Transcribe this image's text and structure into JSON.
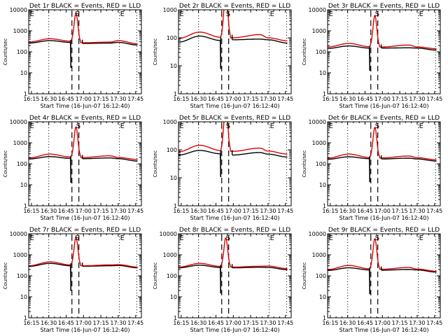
{
  "figure": {
    "type": "multi-panel line plot",
    "colors": {
      "events": "#000000",
      "lld": "#e00000",
      "background": "#ffffff"
    }
  },
  "chart_data": [
    {
      "type": "line",
      "title": "Det 1r BLACK = Events, RED = LLD",
      "xlabel": "Start Time (16-Jun-07 16:12:40)",
      "ylabel": "Counts/sec",
      "xlim": [
        "16:13",
        "17:50"
      ],
      "ylim": [
        1,
        10000
      ],
      "yscale": "log",
      "xticks": [
        "16:15",
        "16:30",
        "16:45",
        "17:00",
        "17:15",
        "17:30",
        "17:45"
      ],
      "yticks": [
        "1",
        "10",
        "100",
        "1000",
        "10000"
      ],
      "markers": {
        "dotted": [
          "16:30",
          "17:31",
          "17:46"
        ],
        "dashed": [
          "16:50",
          "16:56"
        ],
        "labels": [
          {
            "t": "16:13",
            "text": "E"
          },
          {
            "t": "16:52",
            "text": "S"
          },
          {
            "t": "17:31",
            "text": "E"
          }
        ]
      },
      "series": [
        {
          "name": "Events",
          "color": "#000000",
          "base": [
            260,
            340,
            280,
            250,
            260,
            280,
            210
          ],
          "dip": 18
        },
        {
          "name": "LLD",
          "color": "#e00000",
          "base": [
            290,
            420,
            320,
            270,
            290,
            340,
            240
          ],
          "peak": 7000
        }
      ]
    },
    {
      "type": "line",
      "title": "Det 2r BLACK = Events, RED = LLD",
      "xlabel": "Start Time (16-Jun-07 16:12:40)",
      "ylabel": "Counts/sec",
      "xlim": [
        "16:13",
        "17:50"
      ],
      "ylim": [
        1,
        1000
      ],
      "yscale": "log",
      "xticks": [
        "16:15",
        "16:30",
        "16:45",
        "17:00",
        "17:15",
        "17:30",
        "17:45"
      ],
      "yticks": [
        "1",
        "10",
        "100",
        "1000"
      ],
      "markers": {
        "dotted": [
          "16:30",
          "17:31",
          "17:46"
        ],
        "dashed": [
          "16:50",
          "16:56"
        ],
        "labels": [
          {
            "t": "16:13",
            "text": "E"
          },
          {
            "t": "16:53",
            "text": "S"
          },
          {
            "t": "17:31",
            "text": "E"
          }
        ]
      },
      "series": [
        {
          "name": "Events",
          "color": "#000000",
          "base": [
            70,
            115,
            80,
            85,
            90,
            85,
            65
          ],
          "dip": 8
        },
        {
          "name": "LLD",
          "color": "#e00000",
          "base": [
            95,
            160,
            105,
            100,
            130,
            100,
            78
          ],
          "peak": 5000
        }
      ]
    },
    {
      "type": "line",
      "title": "Det 3r BLACK = Events, RED = LLD",
      "xlabel": "Start Time (16-Jun-07 16:12:40)",
      "ylabel": "Counts/sec",
      "xlim": [
        "16:13",
        "17:50"
      ],
      "ylim": [
        1,
        10000
      ],
      "yscale": "log",
      "xticks": [
        "16:15",
        "16:30",
        "16:45",
        "17:00",
        "17:15",
        "17:30",
        "17:45"
      ],
      "yticks": [
        "1",
        "10",
        "100",
        "1000",
        "10000"
      ],
      "markers": {
        "dotted": [
          "16:30",
          "17:31",
          "17:46"
        ],
        "dashed": [
          "16:50",
          "16:56"
        ],
        "labels": [
          {
            "t": "16:13",
            "text": "E"
          },
          {
            "t": "16:53",
            "text": "S"
          },
          {
            "t": "17:31",
            "text": "E"
          }
        ]
      },
      "series": [
        {
          "name": "Events",
          "color": "#000000",
          "base": [
            145,
            190,
            150,
            150,
            155,
            150,
            120
          ],
          "dip": 13
        },
        {
          "name": "LLD",
          "color": "#e00000",
          "base": [
            170,
            250,
            175,
            170,
            210,
            170,
            140
          ],
          "peak": 5500
        }
      ]
    },
    {
      "type": "line",
      "title": "Det 4r BLACK = Events, RED = LLD",
      "xlabel": "Start Time (16-Jun-07 16:12:40)",
      "ylabel": "Counts/sec",
      "xlim": [
        "16:13",
        "17:50"
      ],
      "ylim": [
        1,
        10000
      ],
      "yscale": "log",
      "xticks": [
        "16:15",
        "16:30",
        "16:45",
        "17:00",
        "17:15",
        "17:30",
        "17:45"
      ],
      "yticks": [
        "1",
        "10",
        "100",
        "1000",
        "10000"
      ],
      "markers": {
        "dotted": [
          "16:30",
          "17:31",
          "17:46"
        ],
        "dashed": [
          "16:50",
          "16:56"
        ],
        "labels": [
          {
            "t": "16:13",
            "text": "E"
          },
          {
            "t": "16:53",
            "text": "S"
          },
          {
            "t": "17:31",
            "text": "E"
          }
        ]
      },
      "series": [
        {
          "name": "Events",
          "color": "#000000",
          "base": [
            170,
            220,
            180,
            175,
            190,
            175,
            135
          ],
          "dip": 13
        },
        {
          "name": "LLD",
          "color": "#e00000",
          "base": [
            190,
            290,
            210,
            200,
            240,
            200,
            160
          ],
          "peak": 5800
        }
      ]
    },
    {
      "type": "line",
      "title": "Det 5r BLACK = Events, RED = LLD",
      "xlabel": "Start Time (16-Jun-07 16:12:40)",
      "ylabel": "Counts/sec",
      "xlim": [
        "16:13",
        "17:50"
      ],
      "ylim": [
        1,
        1000
      ],
      "yscale": "log",
      "xticks": [
        "16:15",
        "16:30",
        "16:45",
        "17:00",
        "17:15",
        "17:30",
        "17:45"
      ],
      "yticks": [
        "1",
        "10",
        "100",
        "1000"
      ],
      "markers": {
        "dotted": [
          "16:30",
          "17:31",
          "17:46"
        ],
        "dashed": [
          "16:50",
          "16:56"
        ],
        "labels": [
          {
            "t": "16:13",
            "text": "E"
          },
          {
            "t": "16:53",
            "text": "S"
          },
          {
            "t": "17:31",
            "text": "E"
          }
        ]
      },
      "series": [
        {
          "name": "Events",
          "color": "#000000",
          "base": [
            65,
            95,
            72,
            65,
            80,
            70,
            55
          ],
          "dip": 11
        },
        {
          "name": "LLD",
          "color": "#e00000",
          "base": [
            85,
            145,
            95,
            88,
            115,
            90,
            70
          ],
          "peak": 5000
        }
      ]
    },
    {
      "type": "line",
      "title": "Det 6r BLACK = Events, RED = LLD",
      "xlabel": "Start Time (16-Jun-07 16:12:40)",
      "ylabel": "Counts/sec",
      "xlim": [
        "16:13",
        "17:50"
      ],
      "ylim": [
        1,
        10000
      ],
      "yscale": "log",
      "xticks": [
        "16:15",
        "16:30",
        "16:45",
        "17:00",
        "17:15",
        "17:30",
        "17:45"
      ],
      "yticks": [
        "1",
        "10",
        "100",
        "1000",
        "10000"
      ],
      "markers": {
        "dotted": [
          "16:30",
          "17:31",
          "17:46"
        ],
        "dashed": [
          "16:50",
          "16:56"
        ],
        "labels": [
          {
            "t": "16:13",
            "text": "E"
          },
          {
            "t": "16:53",
            "text": "S"
          },
          {
            "t": "17:31",
            "text": "E"
          }
        ]
      },
      "series": [
        {
          "name": "Events",
          "color": "#000000",
          "base": [
            165,
            215,
            175,
            170,
            185,
            170,
            135
          ],
          "dip": 14
        },
        {
          "name": "LLD",
          "color": "#e00000",
          "base": [
            185,
            290,
            200,
            190,
            235,
            195,
            155
          ],
          "peak": 5500
        }
      ]
    },
    {
      "type": "line",
      "title": "Det 7r BLACK = Events, RED = LLD",
      "xlabel": "Start Time (16-Jun-07 16:12:40)",
      "ylabel": "Counts/sec",
      "xlim": [
        "16:13",
        "17:50"
      ],
      "ylim": [
        1,
        10000
      ],
      "yscale": "log",
      "xticks": [
        "16:15",
        "16:30",
        "16:45",
        "17:00",
        "17:15",
        "17:30",
        "17:45"
      ],
      "yticks": [
        "1",
        "10",
        "100",
        "1000",
        "10000"
      ],
      "markers": {
        "dotted": [
          "16:30",
          "17:31",
          "17:46"
        ],
        "dashed": [
          "16:50",
          "16:56"
        ],
        "labels": [
          {
            "t": "16:13",
            "text": "E"
          },
          {
            "t": "16:52",
            "text": "S"
          },
          {
            "t": "17:31",
            "text": "E"
          }
        ]
      },
      "series": [
        {
          "name": "Events",
          "color": "#000000",
          "base": [
            280,
            390,
            300,
            285,
            300,
            310,
            240
          ],
          "dip": 20
        },
        {
          "name": "LLD",
          "color": "#e00000",
          "base": [
            300,
            460,
            330,
            300,
            330,
            340,
            260
          ],
          "peak": 7000
        }
      ]
    },
    {
      "type": "line",
      "title": "Det 8r BLACK = Events, RED = LLD",
      "xlabel": "Start Time (16-Jun-07 16:12:40)",
      "ylabel": "Counts/sec",
      "xlim": [
        "16:13",
        "17:50"
      ],
      "ylim": [
        1,
        10000
      ],
      "yscale": "log",
      "xticks": [
        "16:15",
        "16:30",
        "16:45",
        "17:00",
        "17:15",
        "17:30",
        "17:45"
      ],
      "yticks": [
        "1",
        "10",
        "100",
        "1000",
        "10000"
      ],
      "markers": {
        "dotted": [
          "16:30",
          "17:31",
          "17:46"
        ],
        "dashed": [
          "16:50",
          "16:56"
        ],
        "labels": [
          {
            "t": "16:13",
            "text": "E"
          },
          {
            "t": "16:53",
            "text": "S"
          },
          {
            "t": "17:31",
            "text": "E"
          }
        ]
      },
      "series": [
        {
          "name": "Events",
          "color": "#000000",
          "base": [
            240,
            320,
            250,
            240,
            255,
            250,
            195
          ],
          "dip": 15
        },
        {
          "name": "LLD",
          "color": "#e00000",
          "base": [
            260,
            390,
            280,
            260,
            285,
            290,
            220
          ],
          "peak": 6500
        }
      ]
    },
    {
      "type": "line",
      "title": "Det 9r BLACK = Events, RED = LLD",
      "xlabel": "Start Time (16-Jun-07 16:12:40)",
      "ylabel": "Counts/sec",
      "xlim": [
        "16:13",
        "17:50"
      ],
      "ylim": [
        1,
        10000
      ],
      "yscale": "log",
      "xticks": [
        "16:15",
        "16:30",
        "16:45",
        "17:00",
        "17:15",
        "17:30",
        "17:45"
      ],
      "yticks": [
        "1",
        "10",
        "100",
        "1000",
        "10000"
      ],
      "markers": {
        "dotted": [
          "16:30",
          "17:31",
          "17:46"
        ],
        "dashed": [
          "16:50",
          "16:56"
        ],
        "labels": [
          {
            "t": "16:13",
            "text": "E"
          },
          {
            "t": "16:53",
            "text": "S"
          },
          {
            "t": "17:31",
            "text": "E"
          }
        ]
      },
      "series": [
        {
          "name": "Events",
          "color": "#000000",
          "base": [
            180,
            240,
            190,
            185,
            200,
            190,
            150
          ],
          "dip": 14
        },
        {
          "name": "LLD",
          "color": "#e00000",
          "base": [
            200,
            310,
            215,
            205,
            250,
            210,
            165
          ],
          "peak": 6000
        }
      ]
    }
  ]
}
